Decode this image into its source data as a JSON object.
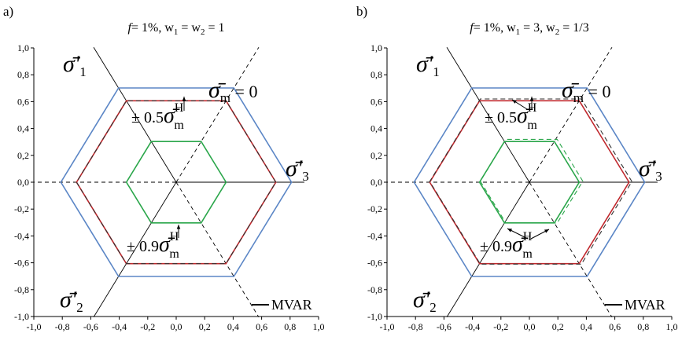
{
  "chart_data": [
    {
      "type": "line",
      "panel_label": "a)",
      "title": "f = 1%, w1 = w2 = 1",
      "title_parts": {
        "f": "f",
        "rest1": "= 1%, w",
        "sub1": "1",
        "rest2": " = w",
        "sub2": "2",
        "rest3": " = 1"
      },
      "xlim": [
        -1.0,
        1.0
      ],
      "ylim": [
        -1.0,
        1.0
      ],
      "x_ticks": [
        "-1,0",
        "-0,8",
        "-0,6",
        "-0,4",
        "-0,2",
        "0,0",
        "0,2",
        "0,4",
        "0,6",
        "0,8",
        "1,0"
      ],
      "y_ticks": [
        "1,0",
        "0,8",
        "0,6",
        "0,4",
        "0,2",
        "0,0",
        "-0,2",
        "-0,4",
        "-0,6",
        "-0,8",
        "-1,0"
      ],
      "axis_labels": {
        "s1": {
          "main": "σ̄'",
          "sub": "1"
        },
        "s2": {
          "main": "σ̄'",
          "sub": "2"
        },
        "s3": {
          "main": "σ̄'",
          "sub": "3"
        }
      },
      "sm0_label": {
        "main": "σ̄",
        "sub": "m",
        "rest": " = 0"
      },
      "annotations": [
        {
          "text": "± 0.5",
          "sym": "σ̄",
          "sub": "m",
          "sup": "H"
        },
        {
          "text": "± 0.9",
          "sym": "σ̄",
          "sub": "m",
          "sup": "H"
        }
      ],
      "legend": "MVAR",
      "series": [
        {
          "color": "#5b86c6",
          "style": "solid",
          "R": 0.81,
          "offset": 0
        },
        {
          "color": "#c0282d",
          "style": "solid",
          "R": 0.7,
          "offset": 0
        },
        {
          "color": "#333333",
          "style": "dashed",
          "R": 0.7,
          "offset": 0
        },
        {
          "color": "#2aa64a",
          "style": "solid",
          "R": 0.35,
          "offset": 0
        }
      ]
    },
    {
      "type": "line",
      "panel_label": "b)",
      "title": "f = 1%, w1 = 3, w2 = 1/3",
      "title_parts": {
        "f": "f",
        "rest1": "= 1%, w",
        "sub1": "1",
        "rest2": " = 3, w",
        "sub2": "2",
        "rest3": " = 1/3"
      },
      "xlim": [
        -1.0,
        1.0
      ],
      "ylim": [
        -1.0,
        1.0
      ],
      "x_ticks": [
        "-1,0",
        "-0,8",
        "-0,6",
        "-0,4",
        "-0,2",
        "0,0",
        "0,2",
        "0,4",
        "0,6",
        "0,8",
        "1,0"
      ],
      "y_ticks": [
        "1,0",
        "0,8",
        "0,6",
        "0,4",
        "0,2",
        "0,0",
        "-0,2",
        "-0,4",
        "-0,6",
        "-0,8",
        "-1,0"
      ],
      "axis_labels": {
        "s1": {
          "main": "σ̄'",
          "sub": "1"
        },
        "s2": {
          "main": "σ̄'",
          "sub": "2"
        },
        "s3": {
          "main": "σ̄'",
          "sub": "3"
        }
      },
      "sm0_label": {
        "main": "σ̄",
        "sub": "m",
        "rest": " = 0"
      },
      "annotations": [
        {
          "text": "± 0.5",
          "sym": "σ̄",
          "sub": "m",
          "sup": "H"
        },
        {
          "text": "± 0.9",
          "sym": "σ̄",
          "sub": "m",
          "sup": "H"
        }
      ],
      "legend": "MVAR",
      "series": [
        {
          "color": "#5b86c6",
          "style": "solid",
          "R": 0.81,
          "offset": 0
        },
        {
          "color": "#c0282d",
          "style": "solid",
          "R": 0.7,
          "offset": 0
        },
        {
          "color": "#333333",
          "style": "dashed",
          "R": 0.71,
          "offset": 0.01
        },
        {
          "color": "#2aa64a",
          "style": "solid",
          "R": 0.35,
          "offset": 0
        },
        {
          "color": "#2aa64a",
          "style": "dashed",
          "R": 0.36,
          "offset": 0.015
        }
      ]
    }
  ]
}
